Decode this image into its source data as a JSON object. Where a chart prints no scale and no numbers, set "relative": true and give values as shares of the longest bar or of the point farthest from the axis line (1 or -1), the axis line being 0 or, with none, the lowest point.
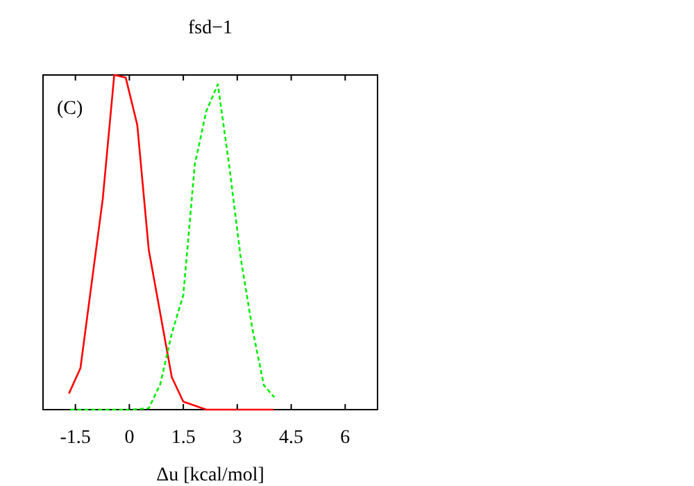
{
  "chart_data": {
    "type": "line",
    "title": "fsd−1",
    "xlabel": "Δu [kcal/mol]",
    "annotations": [
      "(C)"
    ],
    "relative": true,
    "xlim": [
      -2.4,
      6.9
    ],
    "xticks": [
      -1.5,
      0,
      1.5,
      3,
      4.5,
      6
    ],
    "series": [
      {
        "color": "#ff0000",
        "line_style": "solid",
        "x": [
          -1.68,
          -1.36,
          -0.74,
          -0.42,
          -0.1,
          0.22,
          0.54,
          1.18,
          1.5,
          2.14,
          4.0
        ],
        "values": [
          0.048,
          0.124,
          0.629,
          1.0,
          0.992,
          0.851,
          0.477,
          0.097,
          0.024,
          0,
          0
        ]
      },
      {
        "color": "#00ee00",
        "line_style": "dashed",
        "x": [
          -1.64,
          0.03,
          0.54,
          0.86,
          1.18,
          1.5,
          1.82,
          2.14,
          2.46,
          2.78,
          3.1,
          3.42,
          3.74,
          4.03
        ],
        "values": [
          0,
          0,
          0.004,
          0.076,
          0.228,
          0.342,
          0.733,
          0.892,
          0.972,
          0.726,
          0.45,
          0.242,
          0.073,
          0.037
        ]
      }
    ]
  }
}
